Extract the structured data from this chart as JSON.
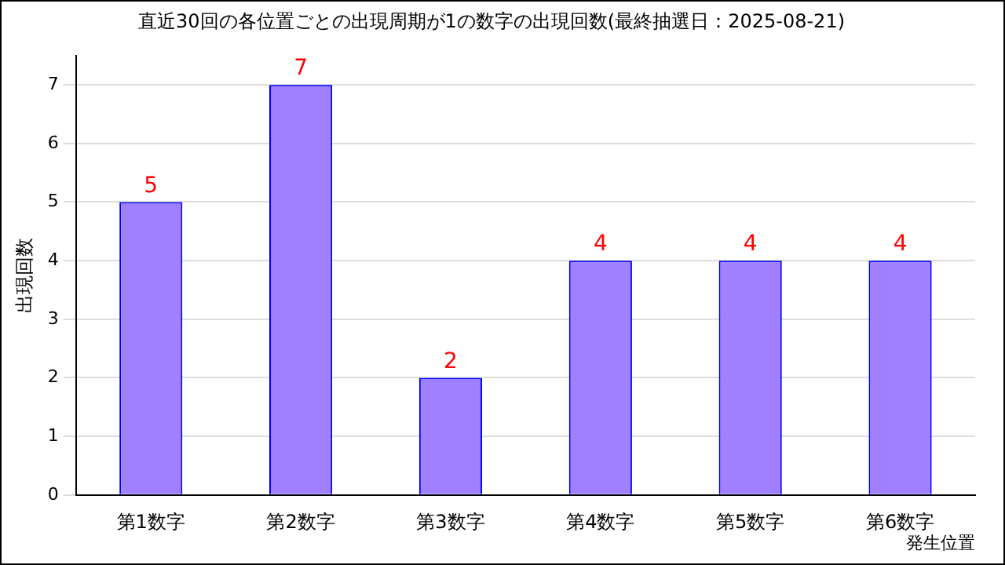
{
  "chart_data": {
    "type": "bar",
    "title": "直近30回の各位置ごとの出現周期が1の数字の出現回数(最終抽選日：2025-08-21)",
    "xlabel": "発生位置",
    "ylabel": "出現回数",
    "categories": [
      "第1数字",
      "第2数字",
      "第3数字",
      "第4数字",
      "第5数字",
      "第6数字"
    ],
    "values": [
      5,
      7,
      2,
      4,
      4,
      4
    ],
    "color": "#a080ff",
    "ylim": [
      0,
      7.5
    ],
    "yticks": [
      0,
      1,
      2,
      3,
      4,
      5,
      6,
      7
    ],
    "grid": "y",
    "data_labels": true,
    "legend": false
  }
}
